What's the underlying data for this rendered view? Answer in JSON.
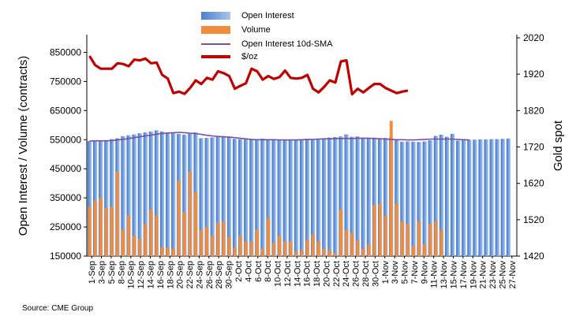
{
  "chart_data": {
    "type": "bar",
    "y_left_label": "Open Interest / Volume (contracts)",
    "y_right_label": "Gold spot",
    "y_left_range": [
      150000,
      900000
    ],
    "y_left_ticks": [
      "150000",
      "250000",
      "350000",
      "450000",
      "550000",
      "650000",
      "750000",
      "850000"
    ],
    "y_right_range": [
      1420,
      2020
    ],
    "y_right_ticks": [
      "1420",
      "1520",
      "1620",
      "1720",
      "1820",
      "1920",
      "2020"
    ],
    "x_tick_labels": [
      "1-Sep",
      "3-Sep",
      "5-Sep",
      "8-Sep",
      "10-Sep",
      "12-Sep",
      "14-Sep",
      "16-Sep",
      "18-Sep",
      "20-Sep",
      "22-Sep",
      "24-Sep",
      "26-Sep",
      "28-Sep",
      "30-Sep",
      "2-Oct",
      "4-Oct",
      "6-Oct",
      "8-Oct",
      "10-Oct",
      "12-Oct",
      "14-Oct",
      "16-Oct",
      "18-Oct",
      "20-Oct",
      "22-Oct",
      "24-Oct",
      "26-Oct",
      "28-Oct",
      "30-Oct",
      "1-Nov",
      "3-Nov",
      "5-Nov",
      "7-Nov",
      "9-Nov",
      "11-Nov",
      "13-Nov",
      "15-Nov",
      "17-Nov",
      "19-Nov",
      "21-Nov",
      "23-Nov",
      "25-Nov",
      "27-Nov"
    ],
    "source": "Source: CME Group",
    "legend_positions": [
      "top-center"
    ],
    "series": [
      {
        "name": "Open Interest",
        "kind": "bar",
        "axis": "left",
        "color": "#5b8fd9",
        "values": [
          545000,
          546000,
          547000,
          546000,
          552000,
          555000,
          562000,
          565000,
          568000,
          572000,
          575000,
          578000,
          582000,
          578000,
          575000,
          572000,
          570000,
          567000,
          570000,
          575000,
          555000,
          556000,
          558000,
          560000,
          562000,
          558000,
          553000,
          552000,
          551000,
          550000,
          552000,
          554000,
          552000,
          550000,
          548000,
          548000,
          549000,
          549000,
          551000,
          553000,
          549000,
          553000,
          554000,
          557000,
          559000,
          561000,
          568000,
          560000,
          561000,
          557000,
          556000,
          557000,
          555000,
          556000,
          557000,
          548000,
          543000,
          544000,
          543000,
          542000,
          544000,
          548000,
          563000,
          567000,
          560000,
          570000,
          547000,
          549000,
          550000,
          550000,
          551000,
          551000,
          552000,
          552000,
          553000,
          554000
        ]
      },
      {
        "name": "Volume",
        "kind": "bar",
        "axis": "left",
        "color": "#f08c3c",
        "values": [
          320000,
          340000,
          350000,
          315000,
          320000,
          440000,
          240000,
          290000,
          220000,
          210000,
          260000,
          310000,
          290000,
          180000,
          180000,
          175000,
          410000,
          300000,
          440000,
          370000,
          240000,
          250000,
          220000,
          265000,
          270000,
          215000,
          180000,
          220000,
          200000,
          200000,
          240000,
          175000,
          280000,
          195000,
          220000,
          200000,
          200000,
          165000,
          170000,
          205000,
          225000,
          200000,
          175000,
          170000,
          160000,
          310000,
          240000,
          230000,
          205000,
          175000,
          190000,
          325000,
          330000,
          290000,
          615000,
          330000,
          270000,
          260000,
          185000,
          270000,
          190000,
          260000,
          270000,
          240000
        ]
      },
      {
        "name": "Open Interest 10d-SMA",
        "kind": "line",
        "axis": "left",
        "color": "#7a4fa3",
        "values": [
          545000,
          546000,
          546000,
          546000,
          547000,
          549000,
          551000,
          554000,
          557000,
          560000,
          563000,
          566000,
          569000,
          571000,
          573000,
          574000,
          575000,
          574000,
          572000,
          571000,
          568000,
          565000,
          563000,
          561000,
          560000,
          559000,
          557000,
          555000,
          553000,
          551000,
          550000,
          550000,
          550000,
          550000,
          549000,
          549000,
          549000,
          549000,
          550000,
          551000,
          551000,
          552000,
          553000,
          553000,
          554000,
          554000,
          554000,
          554000,
          555000,
          555000,
          555000,
          554000,
          553000,
          552000,
          551000,
          550000,
          550000,
          549000,
          549000,
          550000,
          551000,
          552000,
          552000,
          552000,
          552000,
          552000,
          551000,
          550000,
          549000
        ]
      },
      {
        "name": "$/oz",
        "kind": "line",
        "axis": "right",
        "color": "#c00000",
        "values": [
          1970,
          1945,
          1935,
          1935,
          1935,
          1950,
          1948,
          1942,
          1960,
          1958,
          1963,
          1950,
          1952,
          1918,
          1908,
          1868,
          1872,
          1866,
          1882,
          1903,
          1893,
          1910,
          1905,
          1928,
          1923,
          1915,
          1880,
          1888,
          1895,
          1935,
          1928,
          1905,
          1915,
          1907,
          1912,
          1930,
          1910,
          1908,
          1910,
          1918,
          1880,
          1870,
          1885,
          1903,
          1897,
          1955,
          1958,
          1865,
          1880,
          1870,
          1882,
          1893,
          1893,
          1882,
          1875,
          1868,
          1872,
          1875
        ]
      }
    ]
  }
}
